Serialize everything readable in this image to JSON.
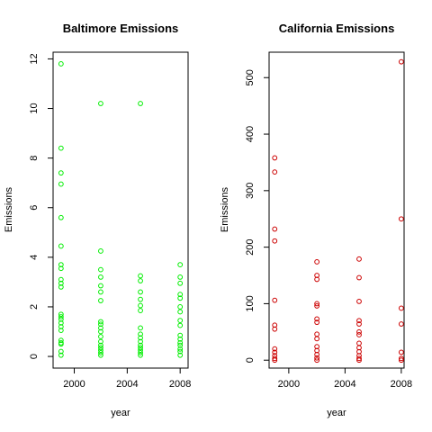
{
  "chart_data": [
    {
      "type": "scatter",
      "title": "Baltimore Emissions",
      "xlabel": "year",
      "ylabel": "Emissions",
      "xlim": [
        1998.4,
        2008.6
      ],
      "ylim": [
        -0.47,
        12.27
      ],
      "xticks": [
        2000,
        2004,
        2008
      ],
      "yticks": [
        0,
        2,
        4,
        6,
        8,
        10,
        12
      ],
      "color": "#00ee00",
      "series": [
        {
          "points": [
            [
              1999,
              11.8
            ],
            [
              1999,
              8.4
            ],
            [
              1999,
              7.4
            ],
            [
              1999,
              6.95
            ],
            [
              1999,
              5.6
            ],
            [
              1999,
              4.45
            ],
            [
              1999,
              3.7
            ],
            [
              1999,
              3.55
            ],
            [
              1999,
              3.1
            ],
            [
              1999,
              2.95
            ],
            [
              1999,
              2.8
            ],
            [
              1999,
              1.7
            ],
            [
              1999,
              1.6
            ],
            [
              1999,
              1.5
            ],
            [
              1999,
              1.35
            ],
            [
              1999,
              1.2
            ],
            [
              1999,
              1.05
            ],
            [
              1999,
              0.65
            ],
            [
              1999,
              0.55
            ],
            [
              1999,
              0.5
            ],
            [
              1999,
              0.2
            ],
            [
              1999,
              0.05
            ],
            [
              2002,
              10.2
            ],
            [
              2002,
              4.25
            ],
            [
              2002,
              3.5
            ],
            [
              2002,
              3.2
            ],
            [
              2002,
              2.85
            ],
            [
              2002,
              2.6
            ],
            [
              2002,
              2.25
            ],
            [
              2002,
              1.4
            ],
            [
              2002,
              1.3
            ],
            [
              2002,
              1.15
            ],
            [
              2002,
              1.0
            ],
            [
              2002,
              0.8
            ],
            [
              2002,
              0.6
            ],
            [
              2002,
              0.45
            ],
            [
              2002,
              0.35
            ],
            [
              2002,
              0.25
            ],
            [
              2002,
              0.15
            ],
            [
              2002,
              0.05
            ],
            [
              2005,
              10.2
            ],
            [
              2005,
              3.25
            ],
            [
              2005,
              3.05
            ],
            [
              2005,
              2.6
            ],
            [
              2005,
              2.3
            ],
            [
              2005,
              2.05
            ],
            [
              2005,
              1.85
            ],
            [
              2005,
              1.15
            ],
            [
              2005,
              0.9
            ],
            [
              2005,
              0.75
            ],
            [
              2005,
              0.6
            ],
            [
              2005,
              0.45
            ],
            [
              2005,
              0.35
            ],
            [
              2005,
              0.25
            ],
            [
              2005,
              0.15
            ],
            [
              2005,
              0.05
            ],
            [
              2008,
              3.7
            ],
            [
              2008,
              3.2
            ],
            [
              2008,
              2.95
            ],
            [
              2008,
              2.5
            ],
            [
              2008,
              2.35
            ],
            [
              2008,
              2.0
            ],
            [
              2008,
              1.8
            ],
            [
              2008,
              1.45
            ],
            [
              2008,
              1.25
            ],
            [
              2008,
              0.85
            ],
            [
              2008,
              0.7
            ],
            [
              2008,
              0.55
            ],
            [
              2008,
              0.45
            ],
            [
              2008,
              0.3
            ],
            [
              2008,
              0.2
            ],
            [
              2008,
              0.05
            ]
          ]
        }
      ]
    },
    {
      "type": "scatter",
      "title": "California Emissions",
      "xlabel": "year",
      "ylabel": "Emissions",
      "xlim": [
        1998.6,
        2008.2
      ],
      "ylim": [
        -14,
        545
      ],
      "xticks": [
        2000,
        2004,
        2008
      ],
      "yticks": [
        0,
        100,
        200,
        300,
        400,
        500
      ],
      "color": "#cc0000",
      "series": [
        {
          "points": [
            [
              1999,
              358
            ],
            [
              1999,
              333
            ],
            [
              1999,
              232
            ],
            [
              1999,
              211
            ],
            [
              1999,
              106
            ],
            [
              1999,
              62
            ],
            [
              1999,
              55
            ],
            [
              1999,
              20
            ],
            [
              1999,
              14
            ],
            [
              1999,
              8
            ],
            [
              1999,
              3
            ],
            [
              1999,
              0
            ],
            [
              2002,
              174
            ],
            [
              2002,
              150
            ],
            [
              2002,
              143
            ],
            [
              2002,
              100
            ],
            [
              2002,
              96
            ],
            [
              2002,
              73
            ],
            [
              2002,
              67
            ],
            [
              2002,
              46
            ],
            [
              2002,
              38
            ],
            [
              2002,
              24
            ],
            [
              2002,
              17
            ],
            [
              2002,
              10
            ],
            [
              2002,
              4
            ],
            [
              2002,
              0
            ],
            [
              2005,
              179
            ],
            [
              2005,
              146
            ],
            [
              2005,
              104
            ],
            [
              2005,
              70
            ],
            [
              2005,
              64
            ],
            [
              2005,
              50
            ],
            [
              2005,
              45
            ],
            [
              2005,
              30
            ],
            [
              2005,
              22
            ],
            [
              2005,
              15
            ],
            [
              2005,
              8
            ],
            [
              2005,
              3
            ],
            [
              2005,
              0
            ],
            [
              2008,
              528
            ],
            [
              2008,
              250
            ],
            [
              2008,
              92
            ],
            [
              2008,
              64
            ],
            [
              2008,
              14
            ],
            [
              2008,
              3
            ],
            [
              2008,
              0
            ]
          ]
        }
      ]
    }
  ]
}
